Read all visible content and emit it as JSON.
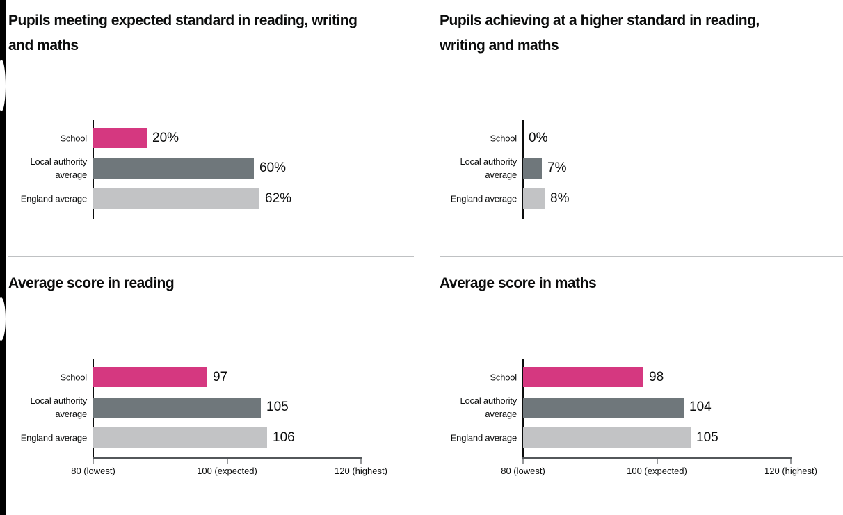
{
  "page": {
    "background": "#ffffff",
    "left_edge_color": "#000000",
    "divider_color": "#bfc1c3",
    "text_color": "#0b0c0c"
  },
  "palette": {
    "school_bar": "#d53880",
    "local_authority_bar": "#6f777b",
    "england_bar": "#c2c3c5",
    "y_axis": "#0b0c0c",
    "x_axis_line": "#53575a",
    "x_axis_tick": "#97999b"
  },
  "chart_data": [
    {
      "type": "bar",
      "orientation": "horizontal",
      "title": "Pupils meeting expected standard in reading, writing and maths",
      "title_lines": [
        "Pupils meeting expected standard in reading, writing",
        "and maths"
      ],
      "categories": [
        "School",
        "Local authority average",
        "England average"
      ],
      "category_lines": [
        [
          "School"
        ],
        [
          "Local authority",
          "average"
        ],
        [
          "England average"
        ]
      ],
      "values": [
        20,
        60,
        62
      ],
      "value_labels": [
        "20%",
        "60%",
        "62%"
      ],
      "bar_colors": [
        "#d53880",
        "#6f777b",
        "#c2c3c5"
      ],
      "xlim": [
        0,
        100
      ],
      "x_ticks": []
    },
    {
      "type": "bar",
      "orientation": "horizontal",
      "title": "Pupils achieving at a higher standard in reading, writing and maths",
      "title_lines": [
        "Pupils achieving at a higher standard in reading,",
        "writing and maths"
      ],
      "categories": [
        "School",
        "Local authority average",
        "England average"
      ],
      "category_lines": [
        [
          "School"
        ],
        [
          "Local authority",
          "average"
        ],
        [
          "England average"
        ]
      ],
      "values": [
        0,
        7,
        8
      ],
      "value_labels": [
        "0%",
        "7%",
        "8%"
      ],
      "bar_colors": [
        "#d53880",
        "#6f777b",
        "#c2c3c5"
      ],
      "xlim": [
        0,
        100
      ],
      "x_ticks": []
    },
    {
      "type": "bar",
      "orientation": "horizontal",
      "title": "Average score in reading",
      "title_lines": [
        "Average score in reading"
      ],
      "categories": [
        "School",
        "Local authority average",
        "England average"
      ],
      "category_lines": [
        [
          "School"
        ],
        [
          "Local authority",
          "average"
        ],
        [
          "England average"
        ]
      ],
      "values": [
        97,
        105,
        106
      ],
      "value_labels": [
        "97",
        "105",
        "106"
      ],
      "bar_colors": [
        "#d53880",
        "#6f777b",
        "#c2c3c5"
      ],
      "xlim": [
        80,
        120
      ],
      "x_ticks": [
        {
          "value": 80,
          "label": "80 (lowest)"
        },
        {
          "value": 100,
          "label": "100 (expected)"
        },
        {
          "value": 120,
          "label": "120 (highest)"
        }
      ]
    },
    {
      "type": "bar",
      "orientation": "horizontal",
      "title": "Average score in maths",
      "title_lines": [
        "Average score in maths"
      ],
      "categories": [
        "School",
        "Local authority average",
        "England average"
      ],
      "category_lines": [
        [
          "School"
        ],
        [
          "Local authority",
          "average"
        ],
        [
          "England average"
        ]
      ],
      "values": [
        98,
        104,
        105
      ],
      "value_labels": [
        "98",
        "104",
        "105"
      ],
      "bar_colors": [
        "#d53880",
        "#6f777b",
        "#c2c3c5"
      ],
      "xlim": [
        80,
        120
      ],
      "x_ticks": [
        {
          "value": 80,
          "label": "80 (lowest)"
        },
        {
          "value": 100,
          "label": "100 (expected)"
        },
        {
          "value": 120,
          "label": "120 (highest)"
        }
      ]
    }
  ]
}
